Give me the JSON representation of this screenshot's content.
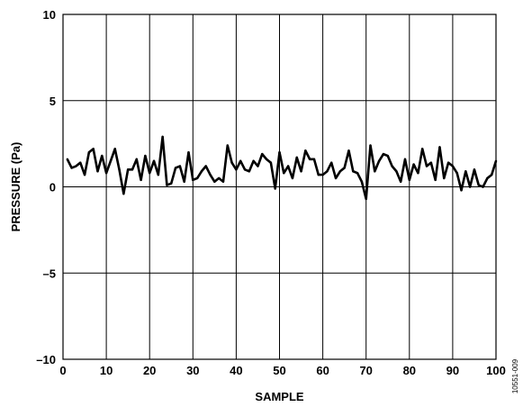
{
  "chart_data": {
    "type": "line",
    "title": "",
    "xlabel": "SAMPLE",
    "ylabel": "PRESSURE (Pa)",
    "xlim": [
      0,
      100
    ],
    "ylim": [
      -10,
      10
    ],
    "x_ticks": [
      0,
      10,
      20,
      30,
      40,
      50,
      60,
      70,
      80,
      90,
      100
    ],
    "y_ticks": [
      10,
      5,
      0,
      -5,
      -10
    ],
    "y_tick_labels": [
      "10",
      "5",
      "0",
      "–5",
      "–10"
    ],
    "grid": true,
    "legend": "none",
    "line_color": "#000000",
    "series": [
      {
        "x": [
          1,
          2,
          3,
          4,
          5,
          6,
          7,
          8,
          9,
          10,
          11,
          12,
          13,
          14,
          15,
          16,
          17,
          18,
          19,
          20,
          21,
          22,
          23,
          24,
          25,
          26,
          27,
          28,
          29,
          30,
          31,
          32,
          33,
          34,
          35,
          36,
          37,
          38,
          39,
          40,
          41,
          42,
          43,
          44,
          45,
          46,
          47,
          48,
          49,
          50,
          51,
          52,
          53,
          54,
          55,
          56,
          57,
          58,
          59,
          60,
          61,
          62,
          63,
          64,
          65,
          66,
          67,
          68,
          69,
          70,
          71,
          72,
          73,
          74,
          75,
          76,
          77,
          78,
          79,
          80,
          81,
          82,
          83,
          84,
          85,
          86,
          87,
          88,
          89,
          90,
          91,
          92,
          93,
          94,
          95,
          96,
          97,
          98,
          99,
          100
        ],
        "values": [
          1.6,
          1.1,
          1.2,
          1.4,
          0.7,
          2.0,
          2.2,
          0.9,
          1.8,
          0.8,
          1.5,
          2.2,
          1.0,
          -0.4,
          1.0,
          1.0,
          1.6,
          0.4,
          1.8,
          0.8,
          1.5,
          0.7,
          2.9,
          0.1,
          0.2,
          1.1,
          1.2,
          0.3,
          2.0,
          0.4,
          0.5,
          0.9,
          1.2,
          0.7,
          0.3,
          0.5,
          0.3,
          2.4,
          1.4,
          1.0,
          1.5,
          1.0,
          0.9,
          1.5,
          1.2,
          1.9,
          1.6,
          1.4,
          -0.1,
          2.0,
          0.8,
          1.2,
          0.5,
          1.7,
          0.9,
          2.1,
          1.6,
          1.6,
          0.7,
          0.7,
          0.9,
          1.4,
          0.5,
          0.9,
          1.1,
          2.1,
          0.9,
          0.8,
          0.3,
          -0.7,
          2.4,
          0.9,
          1.5,
          1.9,
          1.8,
          1.2,
          0.9,
          0.3,
          1.6,
          0.4,
          1.3,
          0.8,
          2.2,
          1.2,
          1.4,
          0.4,
          2.3,
          0.5,
          1.4,
          1.2,
          0.8,
          -0.2,
          0.9,
          0.0,
          1.0,
          0.1,
          0.0,
          0.5,
          0.7,
          1.5
        ]
      }
    ],
    "figure_id": "10551-009"
  }
}
